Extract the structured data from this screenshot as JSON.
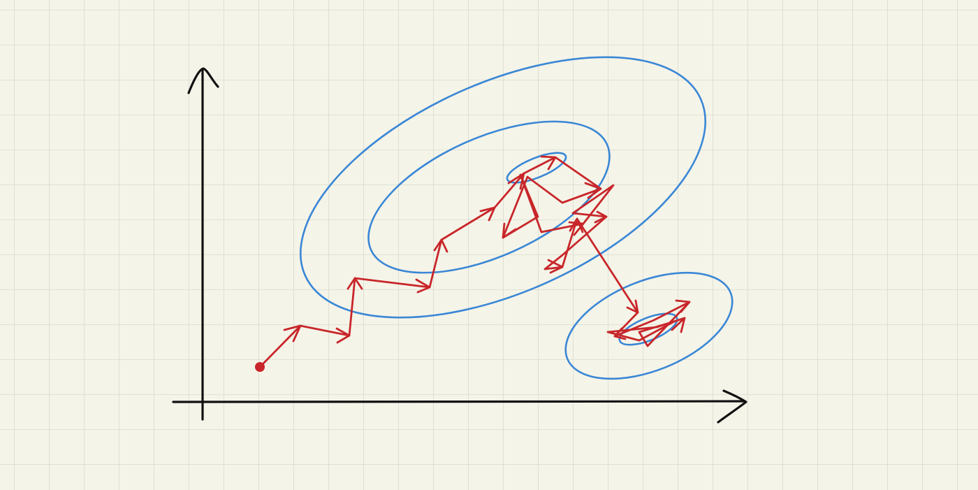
{
  "title": "",
  "colors": {
    "paper": "#f5f4e8",
    "grid": "#d9dbd0",
    "axis": "#111111",
    "contour": "#3a87d6",
    "path": "#c8262a"
  },
  "diagram": {
    "type": "sketch",
    "description_elements": [
      "axes",
      "contour-ellipses",
      "zigzag-arrow-path",
      "start-dot"
    ]
  }
}
